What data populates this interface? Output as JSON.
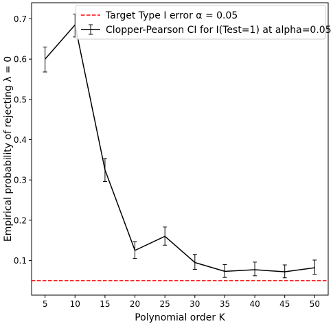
{
  "chart_data": {
    "type": "line",
    "xlabel": "Polynomial order K",
    "ylabel": "Empirical probability of rejecting λ = 0",
    "x": [
      5,
      10,
      15,
      20,
      25,
      30,
      35,
      40,
      45,
      50
    ],
    "xlim": [
      2.75,
      52.25
    ],
    "ylim": [
      0.014,
      0.74
    ],
    "xticks": [
      5,
      10,
      15,
      20,
      25,
      30,
      35,
      40,
      45,
      50
    ],
    "yticks": [
      0.1,
      0.2,
      0.3,
      0.4,
      0.5,
      0.6,
      0.7
    ],
    "xtick_labels": [
      "5",
      "10",
      "15",
      "20",
      "25",
      "30",
      "35",
      "40",
      "45",
      "50"
    ],
    "ytick_labels": [
      "0.1",
      "0.2",
      "0.3",
      "0.4",
      "0.5",
      "0.6",
      "0.7"
    ],
    "grid": false,
    "legend_position": "top-right",
    "series": [
      {
        "name": "Clopper-Pearson CI for I(Test=1) at alpha=0.05",
        "kind": "errorbar",
        "color": "#000000",
        "values": [
          0.6,
          0.685,
          0.325,
          0.125,
          0.16,
          0.095,
          0.073,
          0.077,
          0.072,
          0.082
        ],
        "lower": [
          0.568,
          0.655,
          0.296,
          0.105,
          0.138,
          0.078,
          0.058,
          0.062,
          0.057,
          0.066
        ],
        "upper": [
          0.63,
          0.712,
          0.353,
          0.147,
          0.183,
          0.115,
          0.09,
          0.096,
          0.089,
          0.101
        ]
      }
    ],
    "reference_lines": [
      {
        "name": "Target Type I error α = 0.05",
        "orientation": "horizontal",
        "value": 0.05,
        "color": "#ff0000",
        "style": "dashed"
      }
    ]
  }
}
